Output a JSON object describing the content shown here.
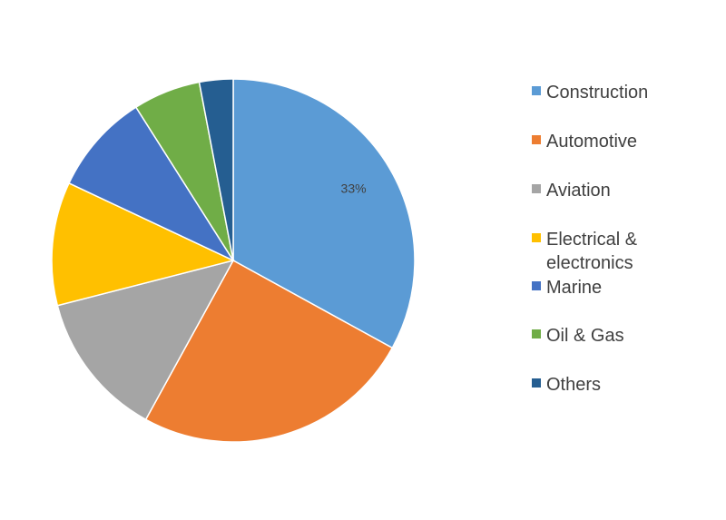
{
  "chart_data": {
    "type": "pie",
    "categories": [
      "Construction",
      "Automotive",
      "Aviation",
      "Electrical & electronics",
      "Marine",
      "Oil & Gas",
      "Others"
    ],
    "values": [
      33,
      25,
      13,
      11,
      9,
      6,
      3
    ],
    "colors": [
      "#5B9BD5",
      "#ED7D31",
      "#A5A5A5",
      "#FFC000",
      "#4472C4",
      "#70AD47",
      "#255E91"
    ],
    "data_labels": [
      "33%",
      "",
      "",
      "",
      "",
      "",
      ""
    ],
    "start_angle": "12 o'clock",
    "direction": "clockwise",
    "legend_position": "right"
  }
}
